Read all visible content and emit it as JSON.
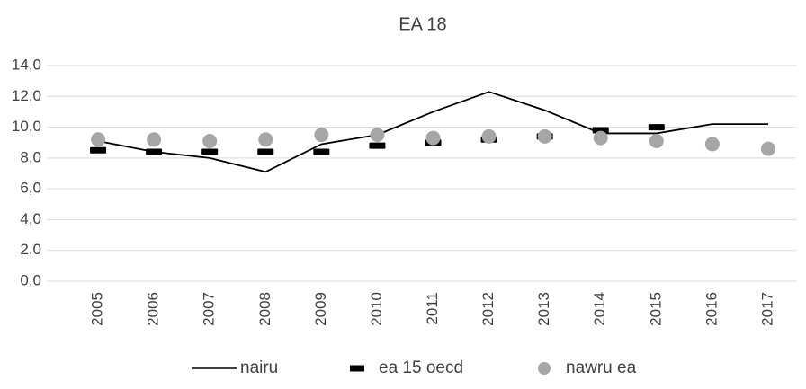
{
  "chart_data": {
    "type": "line",
    "title": "EA 18",
    "categories": [
      "2005",
      "2006",
      "2007",
      "2008",
      "2009",
      "2010",
      "2011",
      "2012",
      "2013",
      "2014",
      "2015",
      "2016",
      "2017"
    ],
    "series": [
      {
        "name": "nairu",
        "color": "#000000",
        "marker": "none",
        "values": [
          9.1,
          8.4,
          8.0,
          7.1,
          8.9,
          9.5,
          11.0,
          12.3,
          11.1,
          9.6,
          9.6,
          10.2,
          10.2
        ]
      },
      {
        "name": "ea 15 oecd",
        "color": "#000000",
        "marker": "dash",
        "values": [
          8.5,
          8.4,
          8.4,
          8.4,
          8.4,
          8.8,
          9.0,
          9.2,
          9.4,
          9.8,
          10.0,
          null,
          null
        ]
      },
      {
        "name": "nawru ea",
        "color": "#a6a6a6",
        "marker": "circle",
        "values": [
          9.2,
          9.2,
          9.1,
          9.2,
          9.5,
          9.5,
          9.3,
          9.4,
          9.4,
          9.3,
          9.1,
          8.9,
          8.6
        ]
      }
    ],
    "ylim": [
      0,
      14
    ],
    "yticks": [
      {
        "value": 0,
        "label": "0,0"
      },
      {
        "value": 2,
        "label": "2,0"
      },
      {
        "value": 4,
        "label": "4,0"
      },
      {
        "value": 6,
        "label": "6,0"
      },
      {
        "value": 8,
        "label": "8,0"
      },
      {
        "value": 10,
        "label": "10,0"
      },
      {
        "value": 12,
        "label": "12,0"
      },
      {
        "value": 14,
        "label": "14,0"
      }
    ],
    "grid": true,
    "legend": "bottom"
  }
}
